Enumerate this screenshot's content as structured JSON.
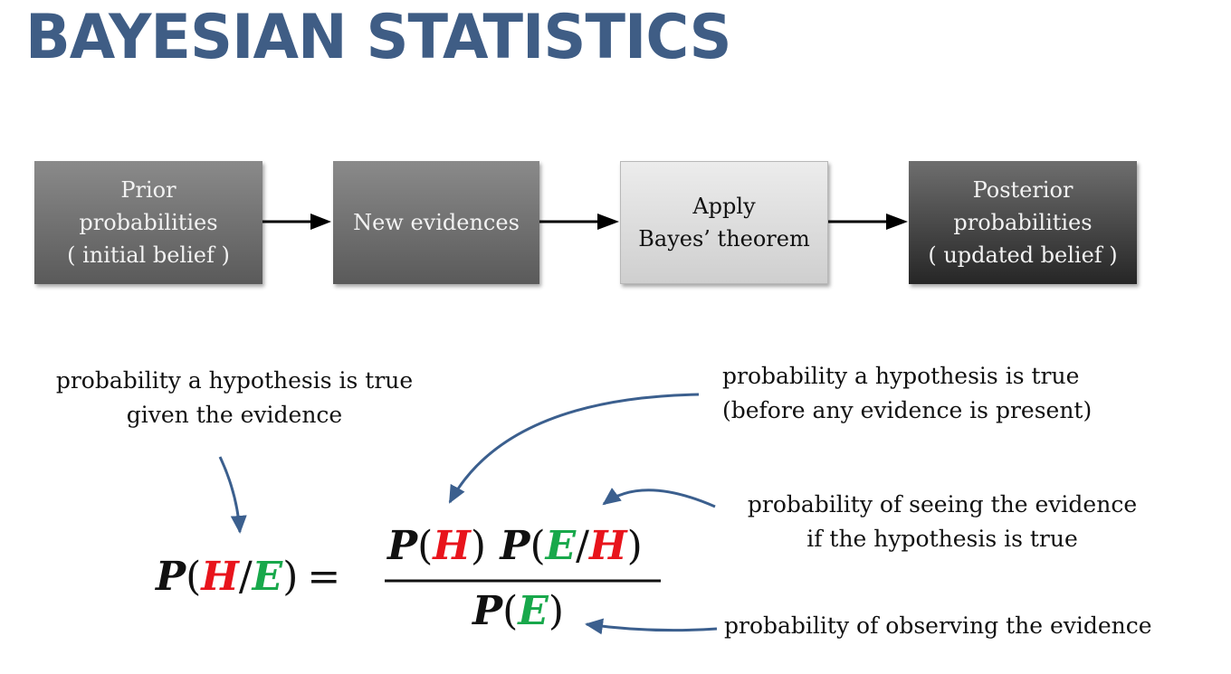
{
  "title": "BAYESIAN STATISTICS",
  "flow": {
    "steps": [
      {
        "lines": [
          "Prior",
          "probabilities",
          "( initial belief )"
        ]
      },
      {
        "lines": [
          "New evidences"
        ]
      },
      {
        "lines": [
          "Apply",
          "Bayes’ theorem"
        ]
      },
      {
        "lines": [
          "Posterior",
          "probabilities",
          "( updated belief )"
        ]
      }
    ]
  },
  "annotations": {
    "posterior": [
      "probability a hypothesis is true",
      "given the evidence"
    ],
    "prior": [
      "probability a hypothesis is true",
      "(before any evidence is present)"
    ],
    "likelihood": [
      "probability of seeing the evidence",
      "if the hypothesis is true"
    ],
    "evidence": [
      "probability of observing the evidence"
    ]
  },
  "formula": {
    "p": "P",
    "h": "H",
    "e": "E",
    "slash": "/",
    "open": "(",
    "close": ")",
    "equals": "="
  },
  "colors": {
    "title": "#3f5d85",
    "hypothesis": "#e8141c",
    "evidence": "#18a84b",
    "arrow_curve": "#3b5f8e"
  }
}
